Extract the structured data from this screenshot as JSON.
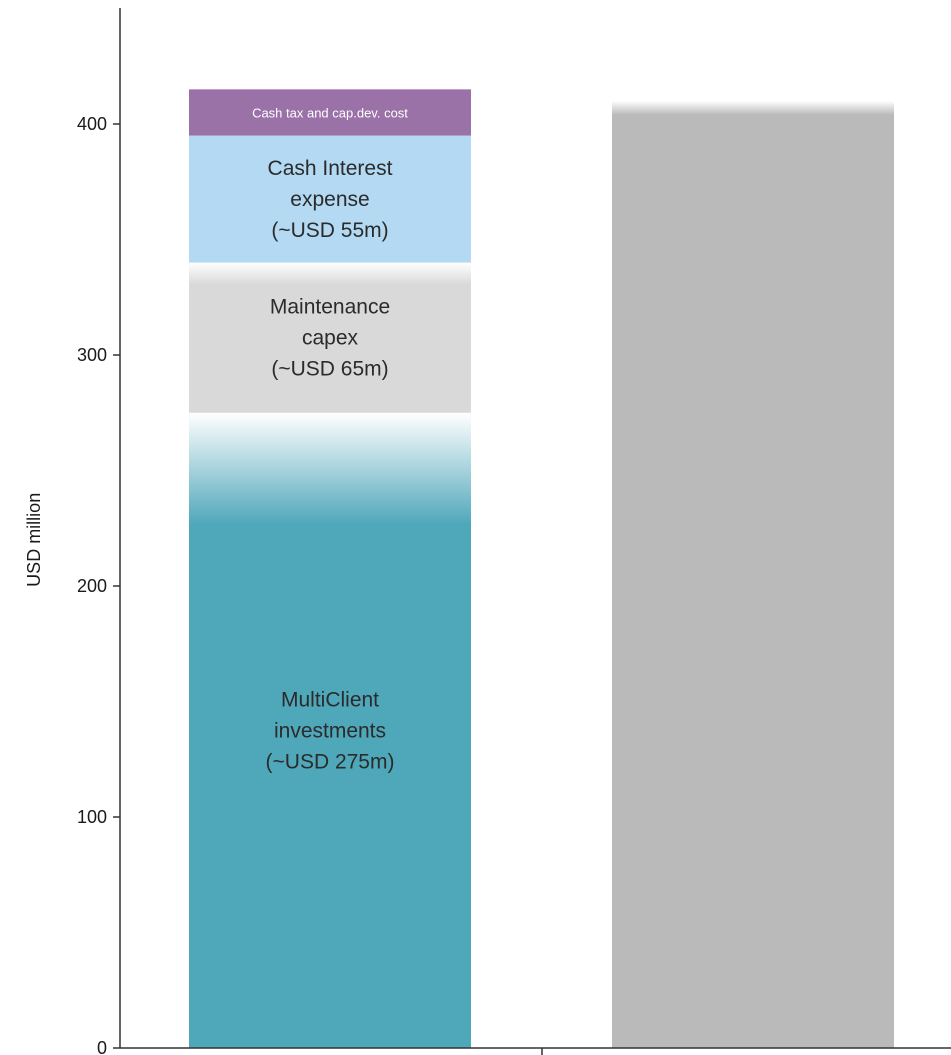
{
  "chart_data": {
    "type": "bar",
    "stacked": true,
    "ylabel": "USD million",
    "ylim": [
      0,
      440
    ],
    "yticks": [
      0,
      100,
      200,
      300,
      400
    ],
    "grid": false,
    "categories": [
      "",
      ""
    ],
    "series": [
      {
        "label_lines": [
          "MultiClient",
          "investments",
          "(~USD 275m)"
        ],
        "values": [
          275,
          null
        ],
        "color": "#4fa7ba",
        "fade_top": true
      },
      {
        "label_lines": [
          "Maintenance",
          "capex",
          "(~USD 65m)"
        ],
        "values": [
          65,
          null
        ],
        "color": "#d9d9d9",
        "fade_top": true
      },
      {
        "label_lines": [
          "Cash Interest",
          "expense",
          "(~USD 55m)"
        ],
        "values": [
          55,
          null
        ],
        "color": "#b3d9f3",
        "fade_top": false
      },
      {
        "label_lines": [
          "Cash tax and cap.dev. cost"
        ],
        "values": [
          20,
          null
        ],
        "color": "#9b72a8",
        "fade_top": false,
        "small_label": true
      },
      {
        "label_lines": [],
        "values": [
          null,
          410
        ],
        "color": "#bababa",
        "fade_top": true
      }
    ]
  }
}
